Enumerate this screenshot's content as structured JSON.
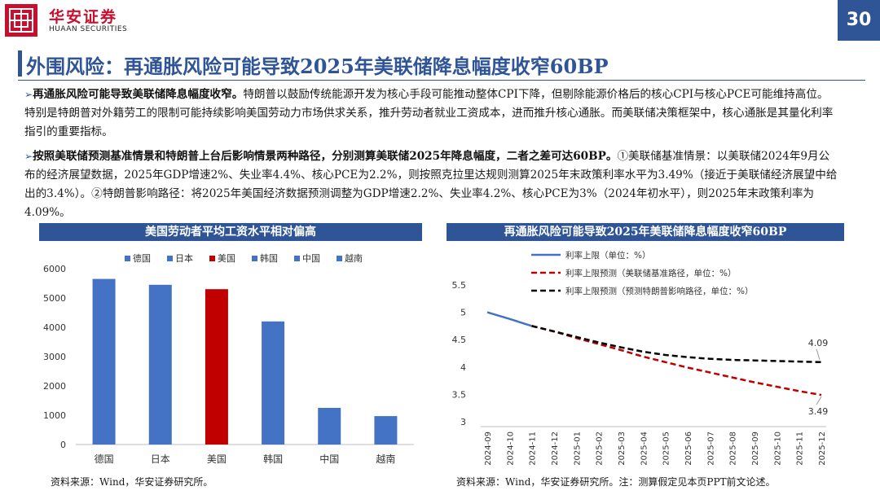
{
  "header": {
    "logo_cn": "华安证券",
    "logo_en": "HUAAN SECURITIES",
    "page_number": "30"
  },
  "title": "外围风险：再通胀风险可能导致2025年美联储降息幅度收窄60BP",
  "paragraphs": [
    {
      "bold": "再通胀风险可能导致美联储降息幅度收窄。",
      "text": "特朗普以鼓励传统能源开发为核心手段可能推动整体CPI下降，但剔除能源价格后的核心CPI与核心PCE可能维持高位。特别是特朗普对外籍劳工的限制可能持续影响美国劳动力市场供求关系，推升劳动者就业工资成本，进而推升核心通胀。而美联储决策框架中，核心通胀是其量化利率指引的重要指标。"
    },
    {
      "bold": "按照美联储预测基准情景和特朗普上台后影响情景两种路径，分别测算美联储2025年降息幅度，二者之差可达60BP。",
      "text": "①美联储基准情景：以美联储2024年9月公布的经济展望数据，2025年GDP增速2%、失业率4.4%、核心PCE为2.2%，则按照克拉里达规则测算2025年末政策利率水平为3.49%（接近于美联储经济展望中给出的3.4%）。②特朗普影响路径：将2025年美国经济数据预测调整为GDP增速2.2%、失业率4.2%、核心PCE为3%（2024年初水平），则2025年末政策利率为4.09%。"
    }
  ],
  "chart_left": {
    "title": "美国劳动者平均工资水平相对偏高",
    "source": "资料来源：Wind，华安证券研究所。"
  },
  "chart_right": {
    "title": "再通胀风险可能导致2025年美联储降息幅度收窄60BP",
    "source": "资料来源：Wind，华安证券研究所。注：测算假定见本页PPT前文论述。"
  },
  "colors": {
    "brand_red": "#c8102e",
    "brand_blue": "#2f5597",
    "bar_blue": "#4472c4",
    "bar_red": "#c00000",
    "line_blue": "#4472c4",
    "line_red": "#c00000",
    "line_black": "#000000"
  },
  "chart_data": [
    {
      "type": "bar",
      "categories": [
        "德国",
        "日本",
        "美国",
        "韩国",
        "中国",
        "越南"
      ],
      "values": [
        5650,
        5450,
        5300,
        4200,
        1250,
        970
      ],
      "highlight_index": 2,
      "legend": [
        "德国",
        "日本",
        "美国",
        "韩国",
        "中国",
        "越南"
      ],
      "legend_position": "top",
      "ylim": [
        0,
        6000
      ],
      "yticks": [
        0,
        1000,
        2000,
        3000,
        4000,
        5000,
        6000
      ],
      "grid": false
    },
    {
      "type": "line",
      "x": [
        "2024-09",
        "2024-10",
        "2024-11",
        "2024-12",
        "2025-01",
        "2025-02",
        "2025-03",
        "2025-04",
        "2025-05",
        "2025-06",
        "2025-07",
        "2025-08",
        "2025-09",
        "2025-10",
        "2025-11",
        "2025-12"
      ],
      "series": [
        {
          "name": "利率上限（单位：%）",
          "style": "solid",
          "values": [
            5.0,
            4.88,
            4.75,
            null,
            null,
            null,
            null,
            null,
            null,
            null,
            null,
            null,
            null,
            null,
            null,
            null
          ]
        },
        {
          "name": "利率上限预测（美联储基准路径，单位：%）",
          "style": "dashed",
          "values": [
            null,
            null,
            4.75,
            4.65,
            4.53,
            4.42,
            4.31,
            4.19,
            4.09,
            3.99,
            3.9,
            3.81,
            3.72,
            3.64,
            3.56,
            3.49
          ]
        },
        {
          "name": "利率上限预测（预测特朗普影响路径，单位：%）",
          "style": "dashed",
          "values": [
            null,
            null,
            4.75,
            4.65,
            4.55,
            4.45,
            4.36,
            4.28,
            4.22,
            4.18,
            4.15,
            4.13,
            4.12,
            4.11,
            4.1,
            4.09
          ]
        }
      ],
      "annotations": [
        "4.09",
        "3.49"
      ],
      "legend_position": "top",
      "ylim": [
        3,
        5.5
      ],
      "yticks": [
        "3",
        "3.5",
        "4",
        "4.5",
        "5",
        "5.5"
      ],
      "grid": false
    }
  ]
}
